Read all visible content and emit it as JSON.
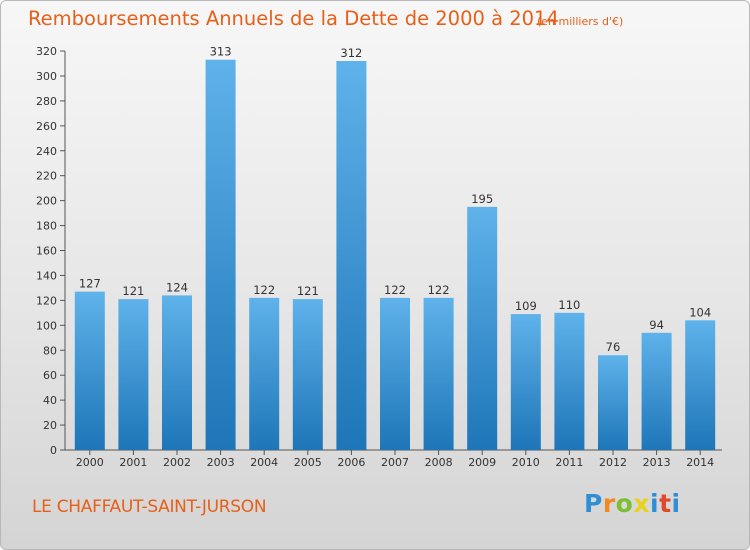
{
  "chart_title": "Remboursements Annuels de la Dette de 2000 à 2014",
  "chart_subtitle": "(en milliers d'€)",
  "place_name": "LE CHAFFAUT-SAINT-JURSON",
  "logo_text": "Proxiti",
  "colors": {
    "accent": "#e85f18",
    "bar_top": "#5fb2ea",
    "bar_bottom": "#1e76b8"
  },
  "chart_data": {
    "type": "bar",
    "title": "Remboursements Annuels de la Dette de 2000 à 2014",
    "subtitle": "(en milliers d'€)",
    "xlabel": "",
    "ylabel": "",
    "categories": [
      "2000",
      "2001",
      "2002",
      "2003",
      "2004",
      "2005",
      "2006",
      "2007",
      "2008",
      "2009",
      "2010",
      "2011",
      "2012",
      "2013",
      "2014"
    ],
    "values": [
      127,
      121,
      124,
      313,
      122,
      121,
      312,
      122,
      122,
      195,
      109,
      110,
      76,
      94,
      104
    ],
    "ylim": [
      0,
      320
    ],
    "yticks": [
      0,
      20,
      40,
      60,
      80,
      100,
      120,
      140,
      160,
      180,
      200,
      220,
      240,
      260,
      280,
      300,
      320
    ],
    "grid": false,
    "data_labels": true
  }
}
